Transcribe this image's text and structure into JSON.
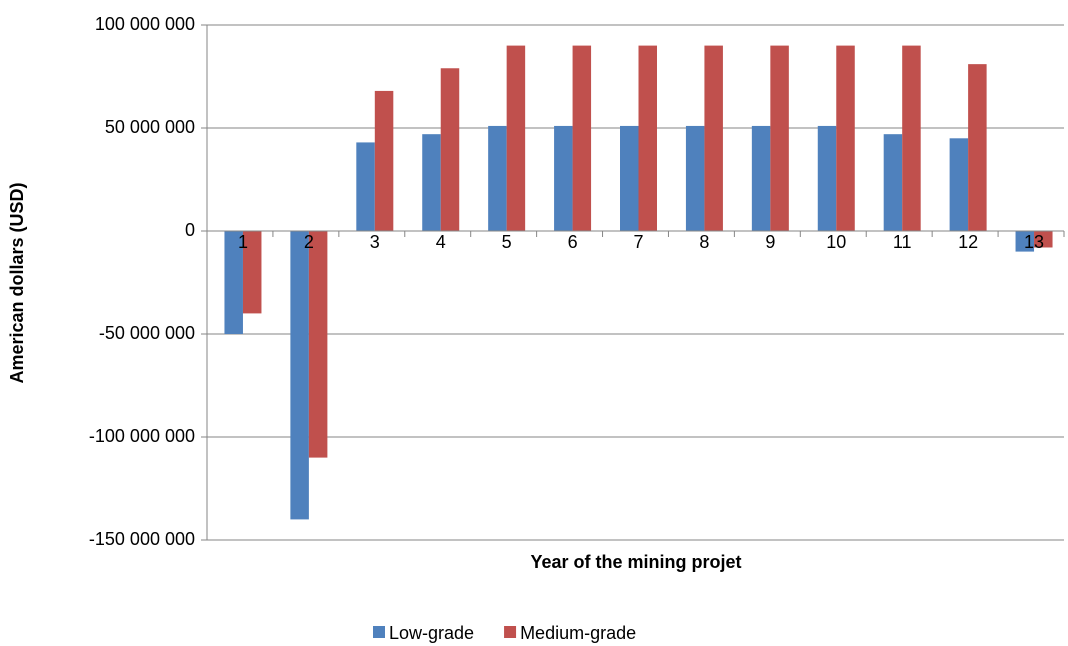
{
  "chart_data": {
    "type": "bar",
    "x_label": "Year of the mining projet",
    "y_label": "American dollars (USD)",
    "categories": [
      "1",
      "2",
      "3",
      "4",
      "5",
      "6",
      "7",
      "8",
      "9",
      "10",
      "11",
      "12",
      "13"
    ],
    "series": [
      {
        "name": "Low-grade",
        "color": "#4f81bd",
        "values": [
          -50000000,
          -140000000,
          43000000,
          47000000,
          51000000,
          51000000,
          51000000,
          51000000,
          51000000,
          51000000,
          47000000,
          45000000,
          -10000000
        ]
      },
      {
        "name": "Medium-grade",
        "color": "#c0504d",
        "values": [
          -40000000,
          -110000000,
          68000000,
          79000000,
          90000000,
          90000000,
          90000000,
          90000000,
          90000000,
          90000000,
          90000000,
          81000000,
          -8000000
        ]
      }
    ],
    "ylim": [
      -150000000,
      100000000
    ],
    "yticks": [
      {
        "value": -150000000,
        "label": "-150 000 000"
      },
      {
        "value": -100000000,
        "label": "-100 000 000"
      },
      {
        "value": -50000000,
        "label": "-50 000 000"
      },
      0,
      {
        "value": 50000000,
        "label": "50 000 000"
      },
      {
        "value": 100000000,
        "label": "100 000 000"
      }
    ],
    "grid": true,
    "legend": "bottom"
  }
}
